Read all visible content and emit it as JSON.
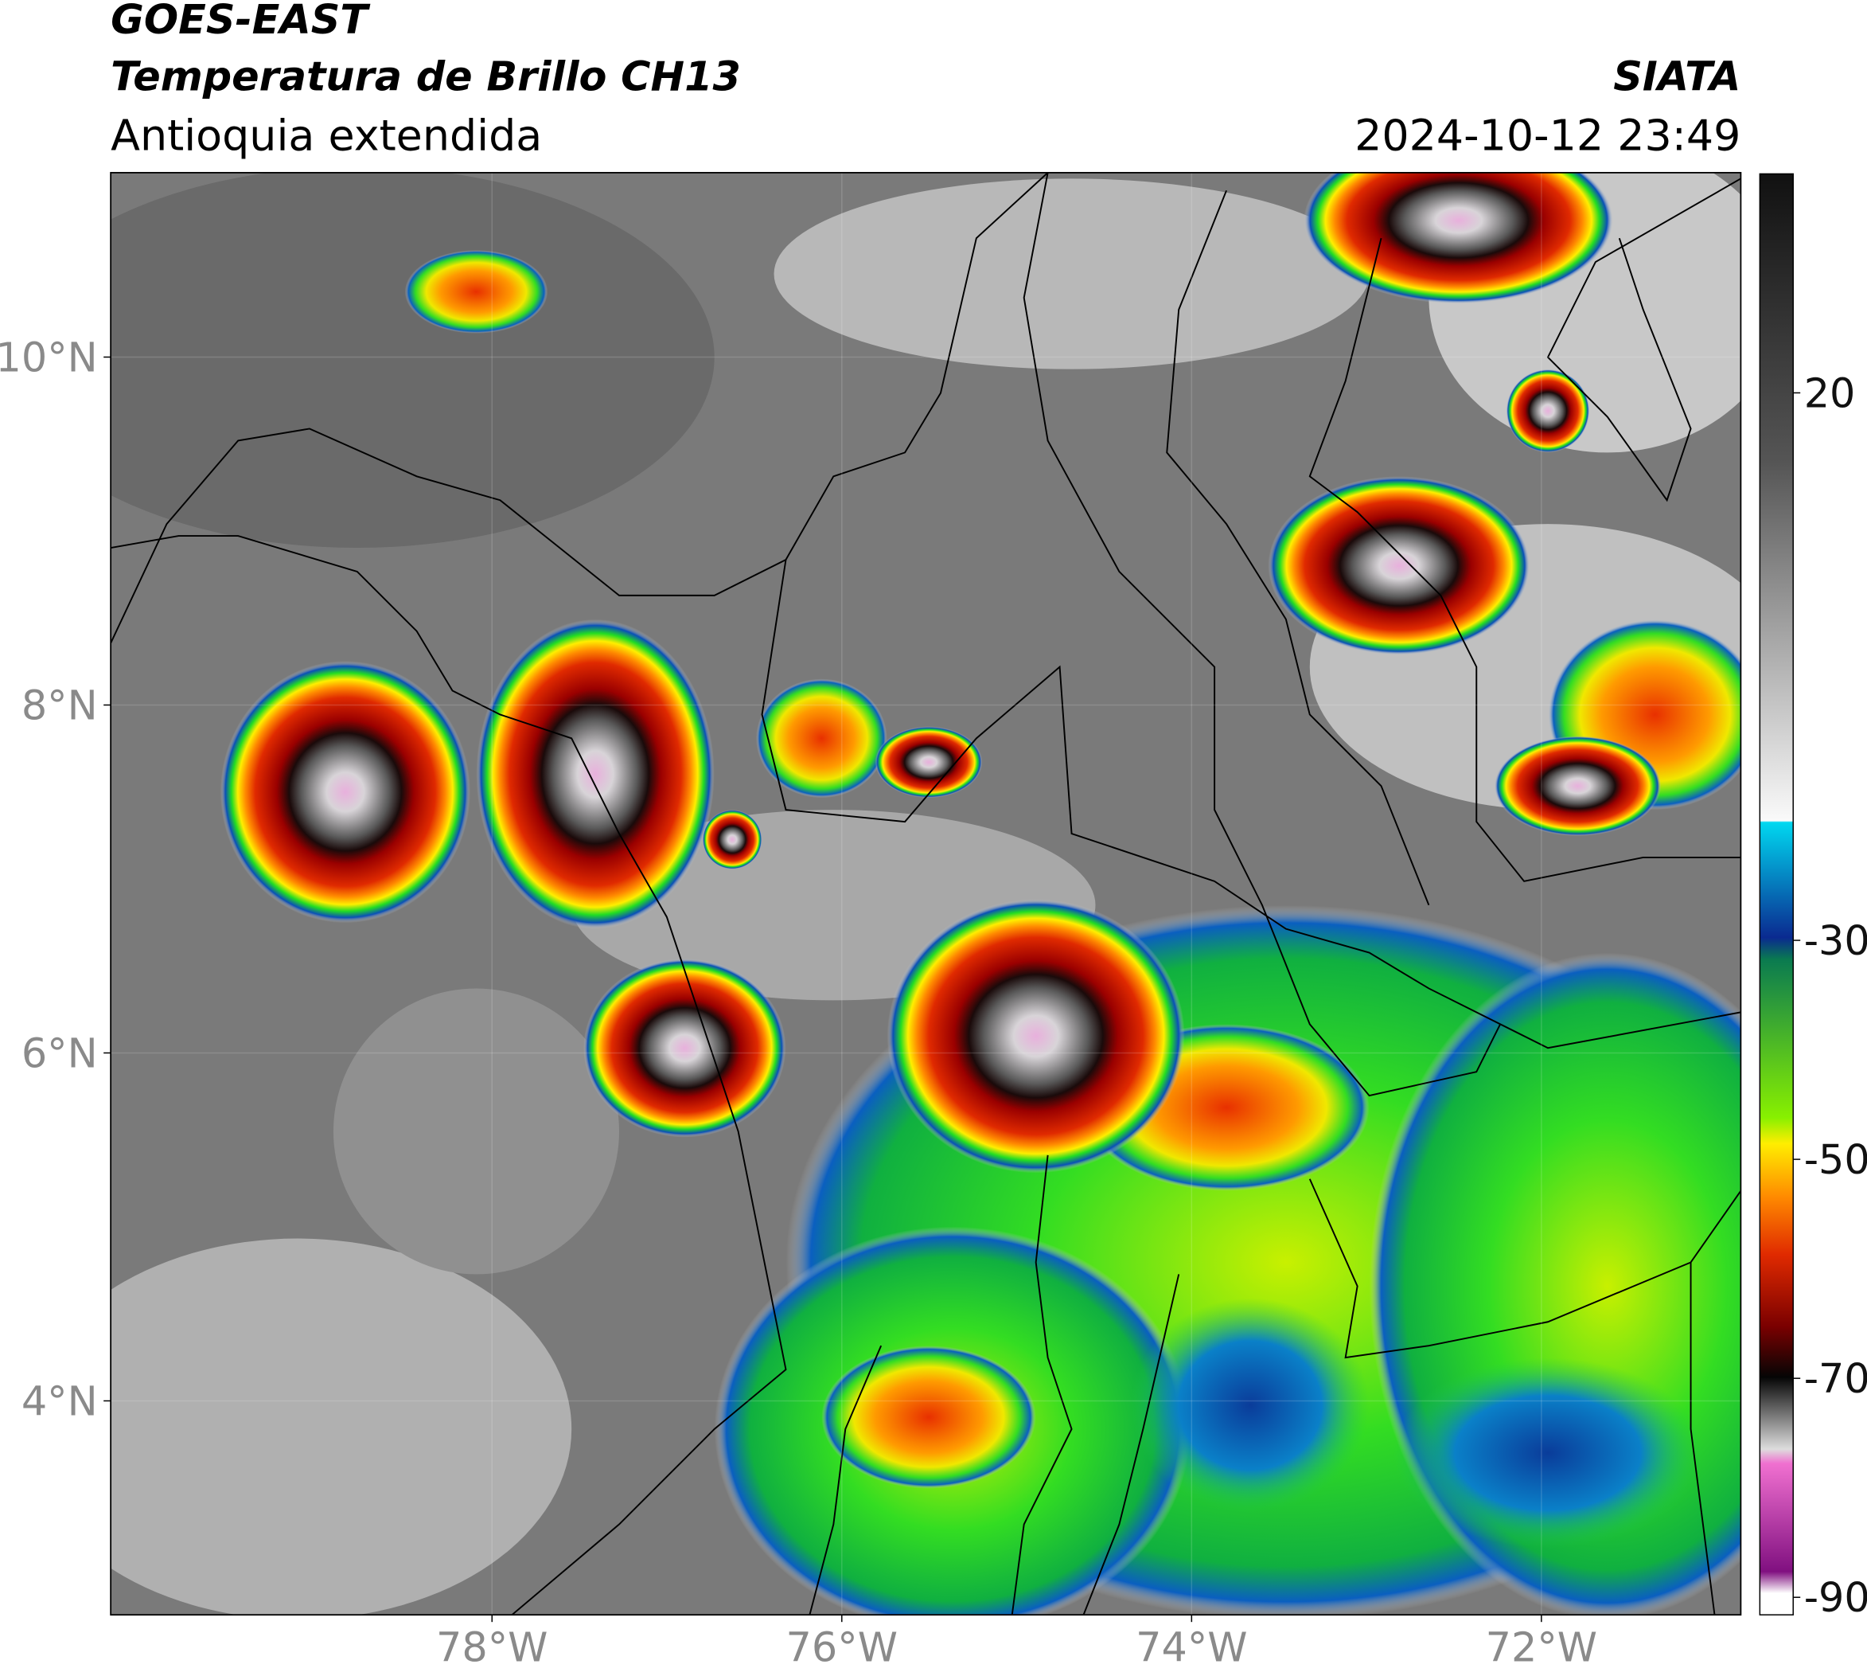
{
  "header": {
    "title": "GOES-EAST",
    "subtitle": "Temperatura de Brillo CH13",
    "region": "Antioquia extendida",
    "source": "SIATA",
    "datetime": "2024-10-12 23:49"
  },
  "map": {
    "xlim": [
      -80.18,
      -70.86
    ],
    "ylim": [
      2.77,
      11.06
    ],
    "xticks": [
      {
        "value": -78,
        "label": "78°W"
      },
      {
        "value": -76,
        "label": "76°W"
      },
      {
        "value": -74,
        "label": "74°W"
      },
      {
        "value": -72,
        "label": "72°W"
      }
    ],
    "yticks": [
      {
        "value": 10,
        "label": "10°N"
      },
      {
        "value": 8,
        "label": "8°N"
      },
      {
        "value": 6,
        "label": "6°N"
      },
      {
        "value": 4,
        "label": "4°N"
      }
    ]
  },
  "colorbar": {
    "lim": [
      -91.6,
      40
    ],
    "ticks": [
      20,
      -30,
      -50,
      -70,
      -90
    ]
  }
}
